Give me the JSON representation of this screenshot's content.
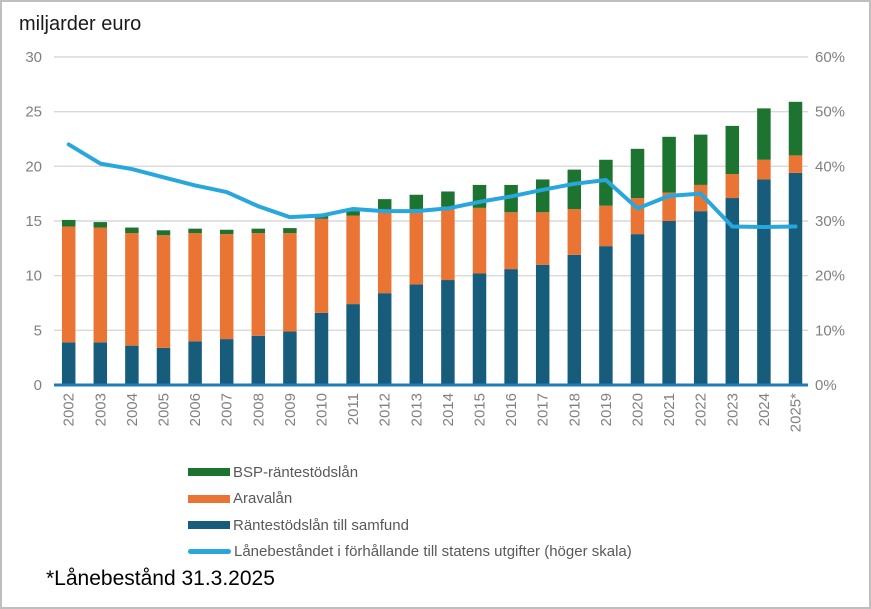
{
  "chart_data": {
    "type": "bar",
    "subtype": "stacked-bars-with-line",
    "title": "miljarder euro",
    "categories": [
      "2002",
      "2003",
      "2004",
      "2005",
      "2006",
      "2007",
      "2008",
      "2009",
      "2010",
      "2011",
      "2012",
      "2013",
      "2014",
      "2015",
      "2016",
      "2017",
      "2018",
      "2019",
      "2020",
      "2021",
      "2022",
      "2023",
      "2024",
      "2025*"
    ],
    "series": [
      {
        "name": "Räntestödslån till samfund",
        "type": "bar",
        "color": "#175d7b",
        "values": [
          3.9,
          3.9,
          3.6,
          3.4,
          4.0,
          4.2,
          4.5,
          4.9,
          6.6,
          7.4,
          8.4,
          9.2,
          9.6,
          10.2,
          10.6,
          11.0,
          11.9,
          12.7,
          13.8,
          15.0,
          15.9,
          17.1,
          18.8,
          19.4
        ]
      },
      {
        "name": "Aravalån",
        "type": "bar",
        "color": "#ea7433",
        "values": [
          10.6,
          10.5,
          10.3,
          10.3,
          9.9,
          9.6,
          9.4,
          9.0,
          8.6,
          8.1,
          7.5,
          6.9,
          6.7,
          6.0,
          5.2,
          4.8,
          4.2,
          3.7,
          3.3,
          2.6,
          2.4,
          2.2,
          1.8,
          1.6
        ]
      },
      {
        "name": "BSP-räntestödslån",
        "type": "bar",
        "color": "#1d7330",
        "values": [
          0.6,
          0.5,
          0.5,
          0.45,
          0.4,
          0.4,
          0.4,
          0.45,
          0.25,
          0.4,
          1.1,
          1.3,
          1.4,
          2.1,
          2.5,
          3.0,
          3.6,
          4.2,
          4.5,
          5.1,
          4.6,
          4.4,
          4.7,
          4.9
        ]
      },
      {
        "name": "Lånebeståndet i förhållande till statens utgifter (höger skala)",
        "type": "line",
        "color": "#27a7dc",
        "axis": "right",
        "values": [
          44,
          40.5,
          39.5,
          38,
          36.5,
          35.3,
          32.7,
          30.7,
          31,
          32.2,
          31.8,
          31.8,
          32.3,
          33.5,
          34.5,
          35.7,
          36.8,
          37.5,
          32.3,
          34.6,
          35,
          29,
          28.9,
          29
        ]
      }
    ],
    "left_axis": {
      "min": 0,
      "max": 30,
      "step": 5,
      "ticks": [
        "0",
        "5",
        "10",
        "15",
        "20",
        "25",
        "30"
      ]
    },
    "right_axis": {
      "min": 0,
      "max": 60,
      "step": 10,
      "ticks": [
        "0%",
        "10%",
        "20%",
        "30%",
        "40%",
        "50%",
        "60%"
      ]
    },
    "grid": true,
    "legend_position": "bottom-left",
    "colors": {
      "gridline": "#d9d9d9",
      "axis_baseline": "#1f7ab8",
      "axis_text": "#808080",
      "x_label_rotation_deg": -90
    }
  },
  "legend": {
    "items": [
      {
        "label": "BSP-räntestödslån",
        "swatch": "bar",
        "color": "#1d7330"
      },
      {
        "label": "Aravalån",
        "swatch": "bar",
        "color": "#ea7433"
      },
      {
        "label": "Räntestödslån till samfund",
        "swatch": "bar",
        "color": "#175d7b"
      },
      {
        "label": "Lånebeståndet i förhållande till statens utgifter (höger skala)",
        "swatch": "line",
        "color": "#27a7dc"
      }
    ]
  },
  "footnote": {
    "text": "*Lånebestånd 31.3.2025"
  }
}
